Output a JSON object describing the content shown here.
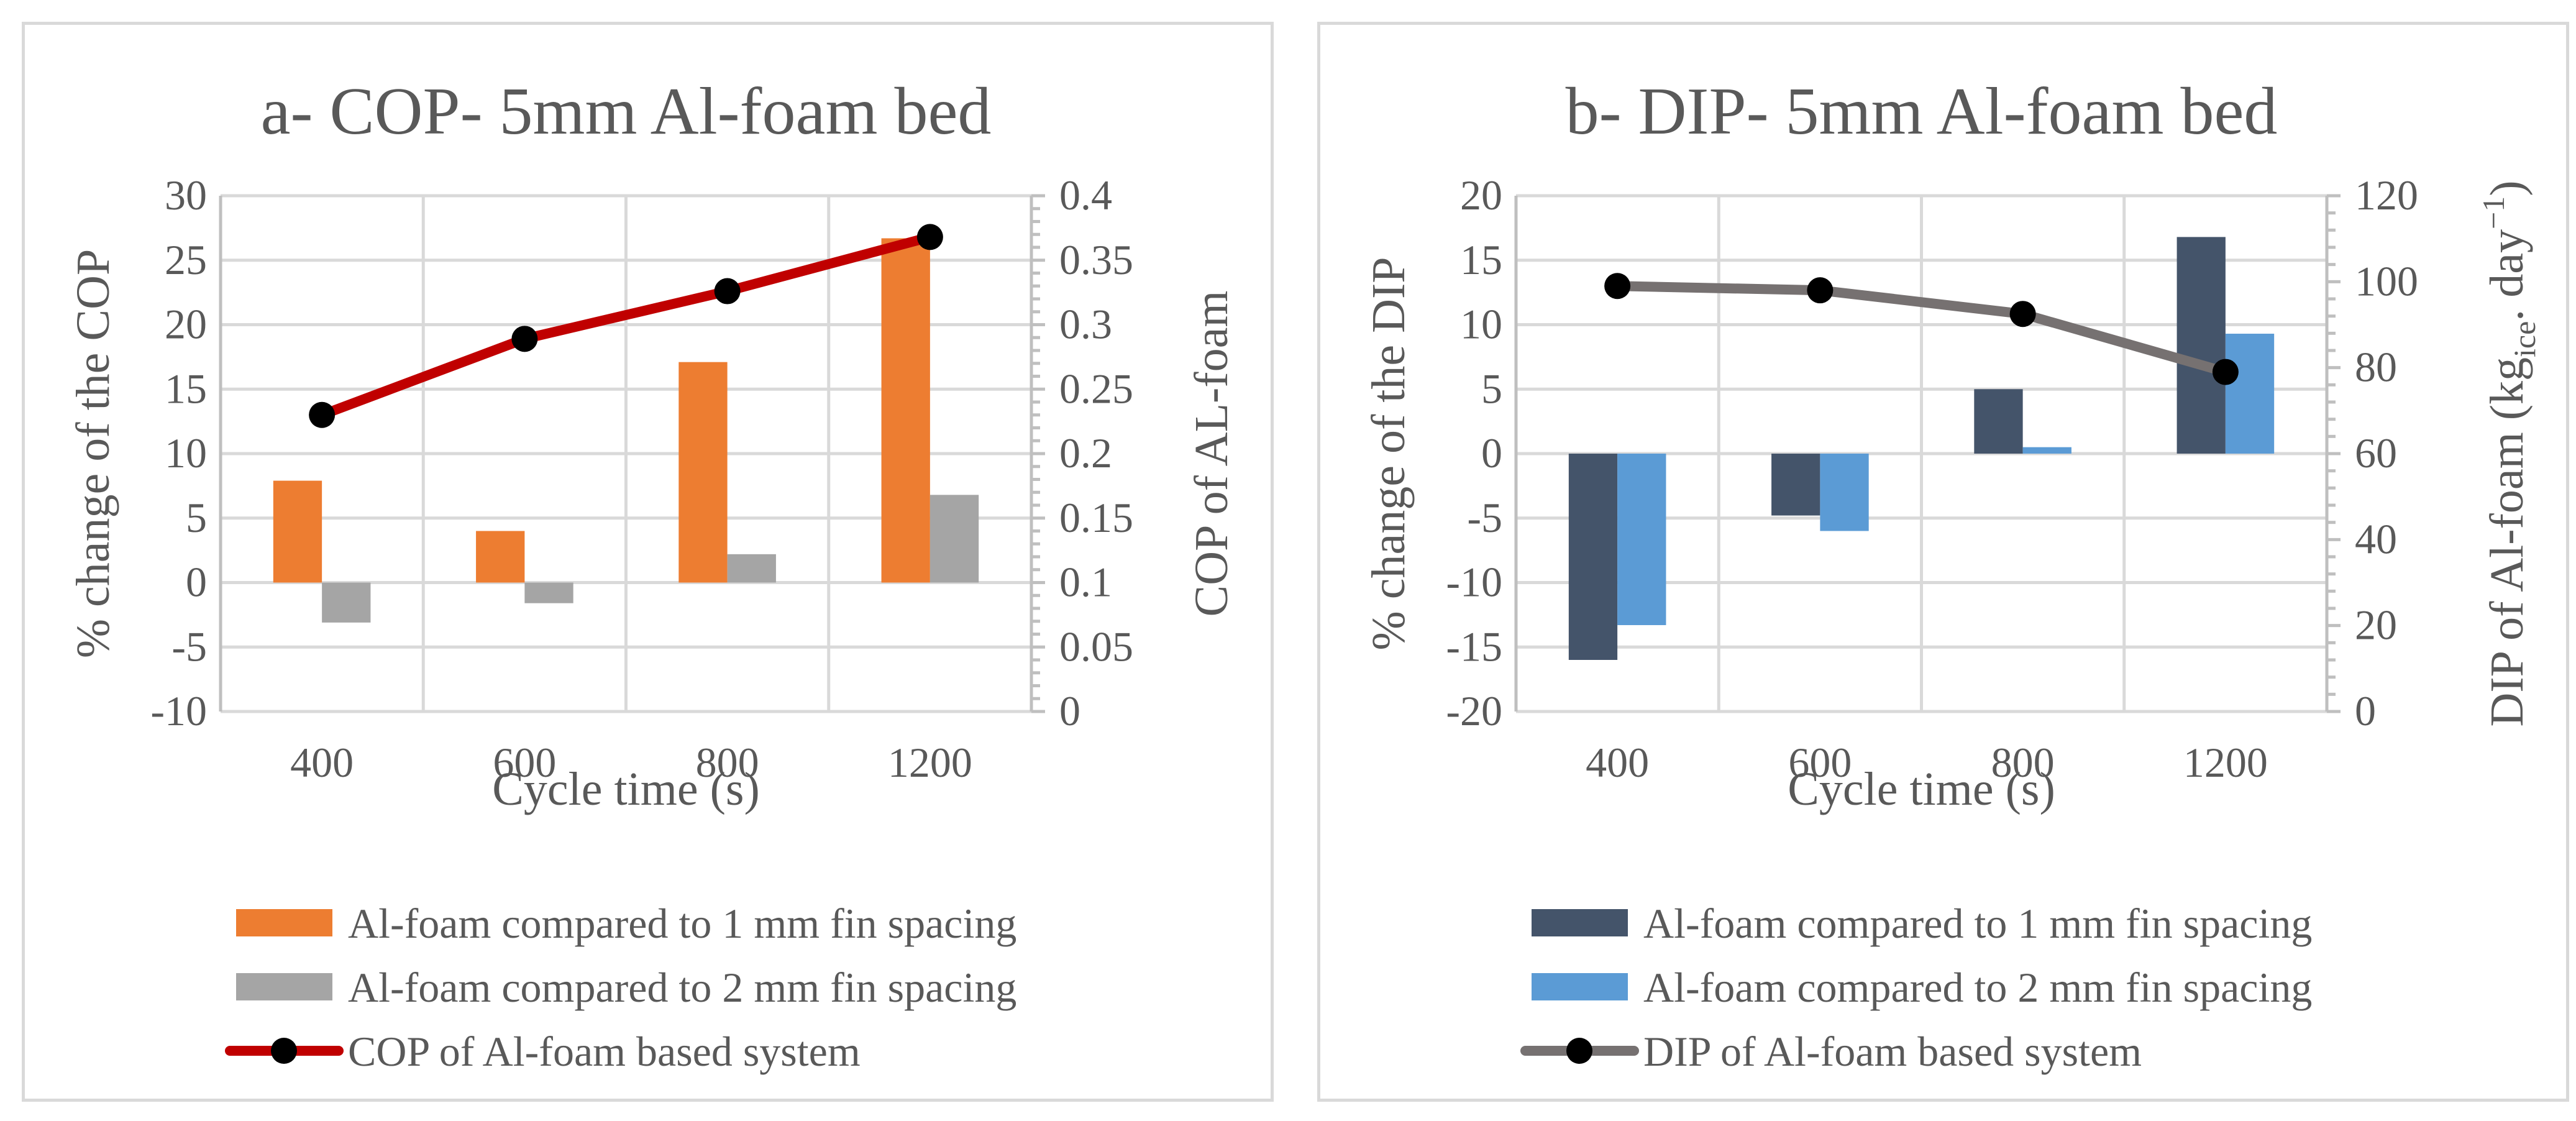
{
  "chart_data": [
    {
      "type": "bar",
      "title": "a- COP- 5mm Al-foam bed",
      "xlabel": "Cycle time (s)",
      "ylabel": "% change of the COP",
      "y2label": "COP of AL-foam",
      "categories": [
        "400",
        "600",
        "800",
        "1200"
      ],
      "ylim": [
        -10,
        30
      ],
      "yticks": [
        -10,
        -5,
        0,
        5,
        10,
        15,
        20,
        25,
        30
      ],
      "y2lim": [
        0,
        0.4
      ],
      "y2ticks": [
        "0",
        "0.05",
        "0.1",
        "0.15",
        "0.2",
        "0.25",
        "0.3",
        "0.35",
        "0.4"
      ],
      "grid": true,
      "legend_position": "bottom",
      "series": [
        {
          "name": "Al-foam compared to 1 mm fin spacing",
          "kind": "bar",
          "axis": "left",
          "color": "#ed7d31",
          "values": [
            7.9,
            4.0,
            17.1,
            26.7
          ]
        },
        {
          "name": "Al-foam compared to 2 mm fin spacing",
          "kind": "bar",
          "axis": "left",
          "color": "#a5a5a5",
          "values": [
            -3.1,
            -1.6,
            2.2,
            6.8
          ]
        },
        {
          "name": "COP of Al-foam based system",
          "kind": "line",
          "axis": "right",
          "color": "#c00000",
          "values": [
            0.23,
            0.289,
            0.326,
            0.368
          ]
        }
      ]
    },
    {
      "type": "bar",
      "title": "b- DIP- 5mm Al-foam bed",
      "xlabel": "Cycle time (s)",
      "ylabel": "% change of the DIP",
      "y2label": "DIP of Al-foam (kg",
      "y2label_sub": "ice",
      "y2label_mid": ". day",
      "y2label_sup": "−1",
      "y2label_end": ")",
      "categories": [
        "400",
        "600",
        "800",
        "1200"
      ],
      "ylim": [
        -20,
        20
      ],
      "yticks": [
        -20,
        -15,
        -10,
        -5,
        0,
        5,
        10,
        15,
        20
      ],
      "y2lim": [
        0,
        120
      ],
      "y2ticks": [
        "0",
        "20",
        "40",
        "60",
        "80",
        "100",
        "120"
      ],
      "grid": true,
      "legend_position": "bottom",
      "series": [
        {
          "name": "Al-foam compared to 1 mm fin spacing",
          "kind": "bar",
          "axis": "left",
          "color": "#44546a",
          "values": [
            -16,
            -4.8,
            5.0,
            16.8
          ]
        },
        {
          "name": "Al-foam compared to 2 mm fin spacing",
          "kind": "bar",
          "axis": "left",
          "color": "#5b9bd5",
          "values": [
            -13.3,
            -6.0,
            0.5,
            9.3
          ]
        },
        {
          "name": "DIP of Al-foam based system",
          "kind": "line",
          "axis": "right",
          "color": "#767171",
          "values": [
            99,
            98,
            92.5,
            79
          ]
        }
      ]
    }
  ]
}
